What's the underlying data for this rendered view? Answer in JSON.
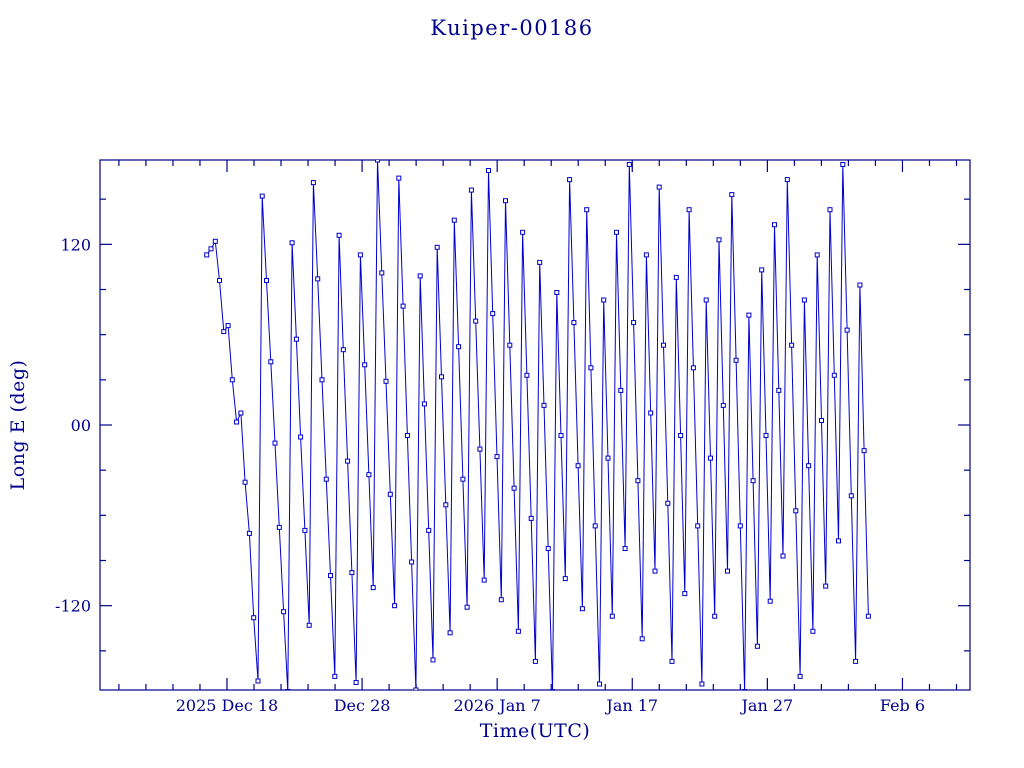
{
  "chart_data": {
    "type": "line",
    "title": "Kuiper-00186",
    "xlabel": "Time(UTC)",
    "ylabel": "Long E (deg)",
    "legend": "none",
    "grid": "off",
    "x_axis": {
      "domain_days": [
        0,
        64.4
      ],
      "major_ticks": [
        {
          "d": 9.4,
          "label": "2025 Dec 18"
        },
        {
          "d": 19.4,
          "label": "Dec 28"
        },
        {
          "d": 29.4,
          "label": "2026 Jan 7"
        },
        {
          "d": 39.4,
          "label": "Jan 17"
        },
        {
          "d": 49.4,
          "label": "Jan 27"
        },
        {
          "d": 59.4,
          "label": "Feb 6"
        }
      ],
      "minor_tick_step_days": 2
    },
    "y_axis": {
      "range_deg": [
        -176,
        176
      ],
      "major_ticks": [
        {
          "v": 120,
          "label": "120"
        },
        {
          "v": 0,
          "label": "00"
        },
        {
          "v": -120,
          "label": "-120"
        }
      ],
      "minor_tick_step_deg": 30
    },
    "series": [
      {
        "name": "spacecraft-east-longitude",
        "t0_days": 7.9,
        "dt_days": 0.316,
        "lon_deg": [
          113,
          117,
          122,
          96,
          62,
          66,
          30,
          2,
          8,
          -38,
          -72,
          -128,
          -170,
          152,
          96,
          42,
          -12,
          -68,
          -124,
          -177,
          121,
          57,
          -8,
          -70,
          -133,
          161,
          97,
          30,
          -36,
          -100,
          -167,
          126,
          50,
          -24,
          -98,
          -171,
          113,
          40,
          -33,
          -108,
          176,
          101,
          29,
          -46,
          -120,
          164,
          79,
          -7,
          -91,
          -176,
          99,
          14,
          -70,
          -156,
          118,
          32,
          -53,
          -138,
          136,
          52,
          -36,
          -121,
          156,
          69,
          -16,
          -103,
          169,
          74,
          -21,
          -116,
          149,
          53,
          -42,
          -137,
          128,
          33,
          -62,
          -157,
          108,
          13,
          -82,
          -177,
          88,
          -7,
          -102,
          163,
          68,
          -27,
          -122,
          143,
          38,
          -67,
          -172,
          83,
          -22,
          -127,
          128,
          23,
          -82,
          173,
          68,
          -37,
          -142,
          113,
          8,
          -97,
          158,
          53,
          -52,
          -157,
          98,
          -7,
          -112,
          143,
          38,
          -67,
          -172,
          83,
          -22,
          -127,
          123,
          13,
          -97,
          153,
          43,
          -67,
          -177,
          73,
          -37,
          -147,
          103,
          -7,
          -117,
          133,
          23,
          -87,
          163,
          53,
          -57,
          -167,
          83,
          -27,
          -137,
          113,
          3,
          -107,
          143,
          33,
          -77,
          173,
          63,
          -47,
          -157,
          93,
          -17,
          -127
        ]
      }
    ],
    "marker": "open-square",
    "colors": {
      "line": "#0000cc",
      "marker_stroke": "#0000cc",
      "marker_fill": "#ffffff",
      "frame": "#00008b",
      "text": "#00008b",
      "background": "#ffffff"
    }
  }
}
